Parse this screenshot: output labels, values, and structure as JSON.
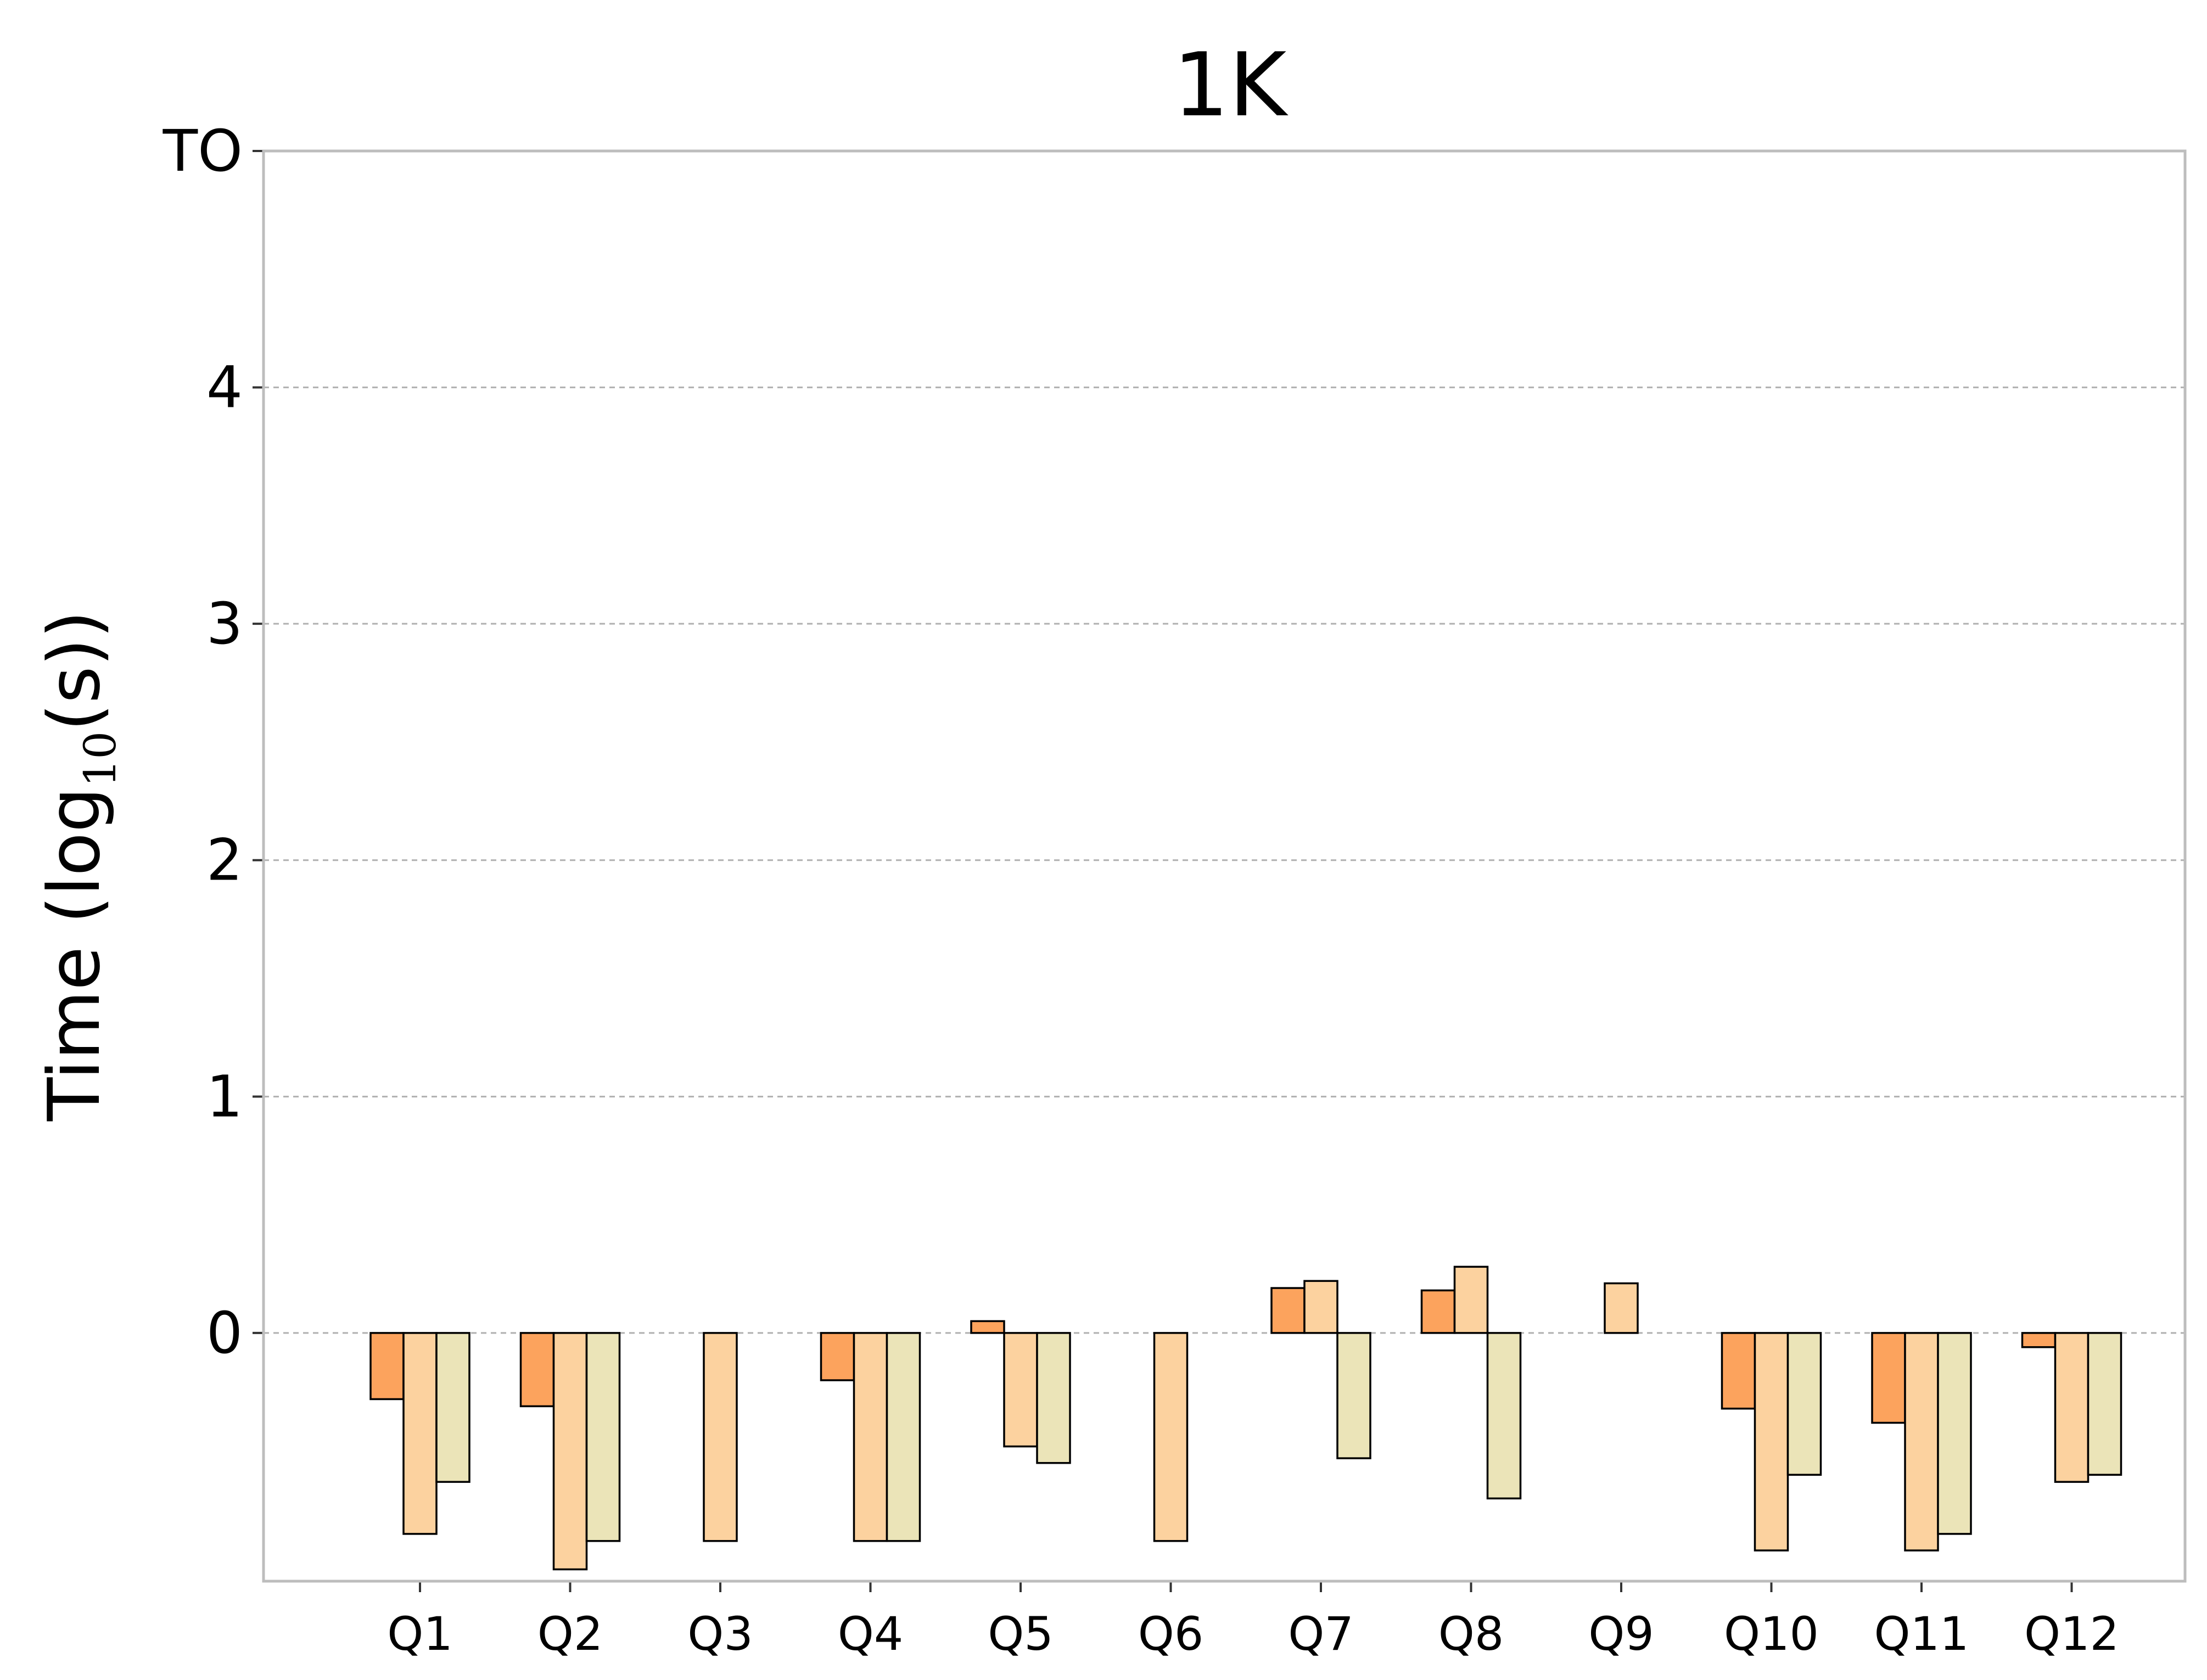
{
  "chart_data": {
    "type": "bar",
    "title": "1K",
    "ylabel": "Time (log",
    "ylabel_sub": "10",
    "ylabel_suffix": "(s))",
    "ylim": [
      -1.05,
      5
    ],
    "yticks": [
      {
        "value": 0,
        "label": "0"
      },
      {
        "value": 1,
        "label": "1"
      },
      {
        "value": 2,
        "label": "2"
      },
      {
        "value": 3,
        "label": "3"
      },
      {
        "value": 4,
        "label": "4"
      },
      {
        "value": 5,
        "label": "TO"
      }
    ],
    "grid": "y-dashed",
    "categories": [
      "Q1",
      "Q2",
      "Q3",
      "Q4",
      "Q5",
      "Q6",
      "Q7",
      "Q8",
      "Q9",
      "Q10",
      "Q11",
      "Q12"
    ],
    "series": [
      {
        "color": "#fca35d",
        "values": [
          -0.28,
          -0.31,
          null,
          -0.2,
          0.05,
          null,
          0.19,
          0.18,
          null,
          -0.32,
          -0.38,
          -0.06
        ]
      },
      {
        "color": "#fcd29f",
        "values": [
          -0.85,
          -1.0,
          -0.88,
          -0.88,
          -0.48,
          -0.88,
          0.22,
          0.28,
          0.21,
          -0.92,
          -0.92,
          -0.63
        ]
      },
      {
        "color": "#ebe4b8",
        "values": [
          -0.63,
          -0.88,
          null,
          -0.88,
          -0.55,
          null,
          -0.53,
          -0.7,
          null,
          -0.6,
          -0.85,
          -0.6
        ]
      }
    ]
  }
}
